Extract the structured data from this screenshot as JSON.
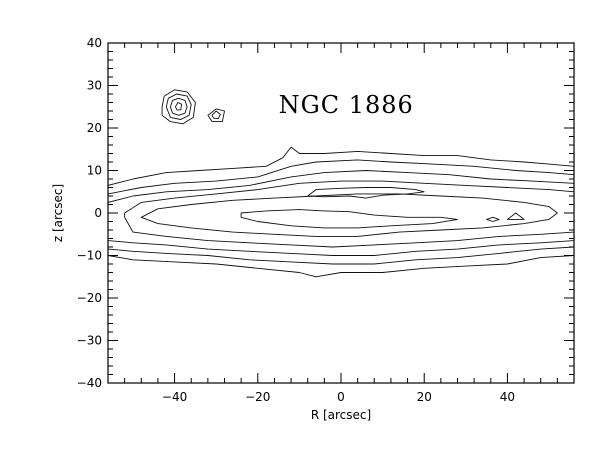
{
  "chart_data": {
    "type": "contour",
    "title": "NGC 1886",
    "xlabel": "R [arcsec]",
    "ylabel": "z [arcsec]",
    "xlim": [
      -56,
      56
    ],
    "ylim": [
      -40,
      40
    ],
    "xticks_major": [
      -40,
      -20,
      0,
      20,
      40
    ],
    "yticks_major": [
      -40,
      -30,
      -20,
      -10,
      0,
      10,
      20,
      30,
      40
    ],
    "xtick_minor_step": 4,
    "ytick_minor_step": 2,
    "grid": false,
    "contours": [
      {
        "name": "level-1",
        "points": [
          [
            -56,
            6.5
          ],
          [
            -50,
            8
          ],
          [
            -42,
            9.5
          ],
          [
            -34,
            10
          ],
          [
            -26,
            10.5
          ],
          [
            -18,
            11
          ],
          [
            -14,
            13
          ],
          [
            -12,
            15.5
          ],
          [
            -10,
            14
          ],
          [
            -4,
            14
          ],
          [
            4,
            14.5
          ],
          [
            12,
            14
          ],
          [
            20,
            13.5
          ],
          [
            28,
            13.5
          ],
          [
            36,
            12.5
          ],
          [
            44,
            12
          ],
          [
            50,
            11.5
          ],
          [
            56,
            11
          ],
          [
            56,
            -10
          ],
          [
            48,
            -10.5
          ],
          [
            40,
            -12
          ],
          [
            30,
            -12.5
          ],
          [
            20,
            -13
          ],
          [
            10,
            -14
          ],
          [
            0,
            -14
          ],
          [
            -6,
            -15
          ],
          [
            -10,
            -14
          ],
          [
            -20,
            -13
          ],
          [
            -30,
            -12
          ],
          [
            -40,
            -11.5
          ],
          [
            -50,
            -11
          ],
          [
            -56,
            -10
          ]
        ]
      },
      {
        "name": "level-2",
        "points": [
          [
            -56,
            4.5
          ],
          [
            -48,
            6
          ],
          [
            -40,
            7
          ],
          [
            -30,
            7.5
          ],
          [
            -20,
            8.5
          ],
          [
            -12,
            11
          ],
          [
            -6,
            12
          ],
          [
            4,
            12.5
          ],
          [
            12,
            12
          ],
          [
            22,
            11.5
          ],
          [
            32,
            11
          ],
          [
            42,
            10
          ],
          [
            50,
            9.5
          ],
          [
            56,
            9
          ],
          [
            56,
            -8
          ],
          [
            48,
            -8.5
          ],
          [
            38,
            -9.5
          ],
          [
            28,
            -10.5
          ],
          [
            18,
            -11
          ],
          [
            8,
            -12
          ],
          [
            -2,
            -12
          ],
          [
            -12,
            -11.5
          ],
          [
            -22,
            -11
          ],
          [
            -32,
            -10
          ],
          [
            -42,
            -9.5
          ],
          [
            -50,
            -9
          ],
          [
            -56,
            -8.5
          ]
        ]
      },
      {
        "name": "level-3",
        "points": [
          [
            -56,
            2.5
          ],
          [
            -50,
            4
          ],
          [
            -42,
            5
          ],
          [
            -32,
            5.5
          ],
          [
            -22,
            6.5
          ],
          [
            -12,
            8.5
          ],
          [
            -4,
            9.5
          ],
          [
            6,
            10
          ],
          [
            16,
            9.5
          ],
          [
            26,
            9
          ],
          [
            36,
            8
          ],
          [
            46,
            7.5
          ],
          [
            56,
            7
          ],
          [
            56,
            -6.5
          ],
          [
            48,
            -7
          ],
          [
            38,
            -7.5
          ],
          [
            28,
            -8.5
          ],
          [
            18,
            -9
          ],
          [
            8,
            -10
          ],
          [
            -2,
            -10
          ],
          [
            -12,
            -9.5
          ],
          [
            -22,
            -9
          ],
          [
            -32,
            -8.5
          ],
          [
            -42,
            -7.5
          ],
          [
            -50,
            -7
          ],
          [
            -56,
            -6.5
          ]
        ]
      },
      {
        "name": "level-4",
        "points": [
          [
            -52,
            0
          ],
          [
            -48,
            2.5
          ],
          [
            -40,
            3.5
          ],
          [
            -30,
            4.5
          ],
          [
            -20,
            5.5
          ],
          [
            -10,
            7
          ],
          [
            0,
            7.5
          ],
          [
            10,
            7.5
          ],
          [
            20,
            7
          ],
          [
            30,
            6.5
          ],
          [
            40,
            6
          ],
          [
            50,
            5.5
          ],
          [
            56,
            5
          ],
          [
            56,
            -4.5
          ],
          [
            48,
            -5
          ],
          [
            38,
            -5.5
          ],
          [
            28,
            -6.5
          ],
          [
            18,
            -7
          ],
          [
            8,
            -7.5
          ],
          [
            -2,
            -8
          ],
          [
            -12,
            -7.5
          ],
          [
            -22,
            -7
          ],
          [
            -32,
            -6.5
          ],
          [
            -42,
            -5.5
          ],
          [
            -50,
            -4.5
          ],
          [
            -52,
            -1
          ]
        ]
      },
      {
        "name": "level-5",
        "points": [
          [
            -48,
            -1
          ],
          [
            -44,
            1
          ],
          [
            -36,
            2
          ],
          [
            -26,
            3
          ],
          [
            -16,
            3.5
          ],
          [
            -6,
            4
          ],
          [
            4,
            4.5
          ],
          [
            14,
            4.5
          ],
          [
            24,
            4
          ],
          [
            34,
            3.5
          ],
          [
            44,
            2.5
          ],
          [
            50,
            1.5
          ],
          [
            52,
            0
          ],
          [
            50,
            -1.5
          ],
          [
            44,
            -2.5
          ],
          [
            34,
            -3.5
          ],
          [
            24,
            -4
          ],
          [
            14,
            -4.5
          ],
          [
            4,
            -5.5
          ],
          [
            -6,
            -5.5
          ],
          [
            -16,
            -5
          ],
          [
            -26,
            -4.5
          ],
          [
            -36,
            -3.5
          ],
          [
            -44,
            -2.5
          ]
        ]
      },
      {
        "name": "level-6",
        "points": [
          [
            -24,
            0
          ],
          [
            -18,
            0.5
          ],
          [
            -10,
            0.8
          ],
          [
            -4,
            0.5
          ],
          [
            2,
            0.3
          ],
          [
            8,
            -0.5
          ],
          [
            16,
            -1
          ],
          [
            24,
            -1
          ],
          [
            28,
            -1.5
          ],
          [
            22,
            -2.5
          ],
          [
            12,
            -3
          ],
          [
            4,
            -3.5
          ],
          [
            -4,
            -3.5
          ],
          [
            -12,
            -3
          ],
          [
            -20,
            -2
          ],
          [
            -24,
            -1
          ]
        ]
      },
      {
        "name": "core-knot",
        "points": [
          [
            -8,
            4
          ],
          [
            -6,
            5.5
          ],
          [
            0,
            5.8
          ],
          [
            6,
            6
          ],
          [
            12,
            6
          ],
          [
            18,
            5.5
          ],
          [
            20,
            5
          ],
          [
            16,
            4.5
          ],
          [
            10,
            4.2
          ],
          [
            6,
            3.5
          ],
          [
            2,
            4
          ],
          [
            -4,
            3.8
          ]
        ]
      },
      {
        "name": "small-knot-a",
        "points": [
          [
            35,
            -1.5
          ],
          [
            36.5,
            -1
          ],
          [
            38,
            -1.5
          ],
          [
            36.5,
            -2
          ]
        ]
      },
      {
        "name": "small-knot-b",
        "points": [
          [
            40,
            -1.5
          ],
          [
            42,
            0
          ],
          [
            44,
            -1.5
          ]
        ]
      },
      {
        "name": "star-1-outer",
        "points": [
          [
            -43,
            25
          ],
          [
            -42.5,
            27.5
          ],
          [
            -40,
            29
          ],
          [
            -37,
            28.5
          ],
          [
            -35,
            26
          ],
          [
            -35.5,
            22.5
          ],
          [
            -38,
            21
          ],
          [
            -41,
            21.5
          ],
          [
            -43,
            23
          ]
        ]
      },
      {
        "name": "star-1-mid",
        "points": [
          [
            -42,
            25
          ],
          [
            -41.5,
            27
          ],
          [
            -39.5,
            28
          ],
          [
            -37,
            27.5
          ],
          [
            -36,
            25.5
          ],
          [
            -36.5,
            23
          ],
          [
            -38.5,
            22
          ],
          [
            -41,
            22.5
          ]
        ]
      },
      {
        "name": "star-1-inner",
        "points": [
          [
            -41,
            25
          ],
          [
            -40.5,
            26.5
          ],
          [
            -39,
            27
          ],
          [
            -37.5,
            26.5
          ],
          [
            -37,
            25
          ],
          [
            -37.5,
            23.5
          ],
          [
            -39,
            23
          ],
          [
            -40.5,
            23.5
          ]
        ]
      },
      {
        "name": "star-1-core",
        "points": [
          [
            -39.8,
            25
          ],
          [
            -39.2,
            26
          ],
          [
            -38.3,
            25.6
          ],
          [
            -38.5,
            24.3
          ],
          [
            -39.4,
            24.2
          ]
        ]
      },
      {
        "name": "star-2-outer",
        "points": [
          [
            -32,
            23
          ],
          [
            -30,
            24.5
          ],
          [
            -28,
            24
          ],
          [
            -28.5,
            21.5
          ],
          [
            -31,
            21.5
          ]
        ]
      },
      {
        "name": "star-2-inner",
        "points": [
          [
            -31,
            23
          ],
          [
            -30,
            24
          ],
          [
            -29,
            23.2
          ],
          [
            -29.5,
            22.2
          ],
          [
            -30.6,
            22.3
          ]
        ]
      }
    ]
  }
}
